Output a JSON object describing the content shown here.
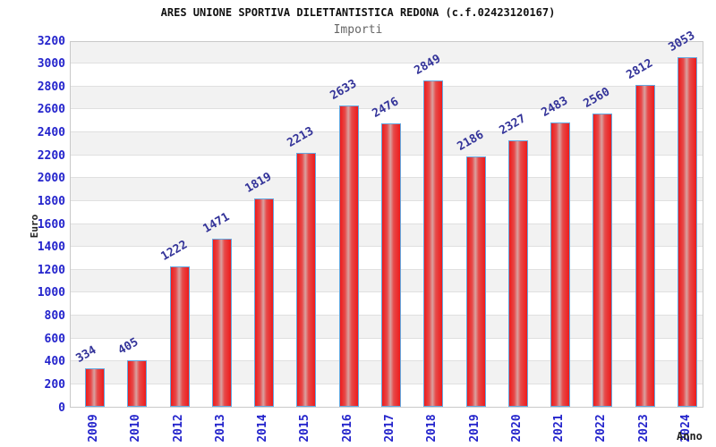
{
  "chart_data": {
    "type": "bar",
    "title": "ARES UNIONE SPORTIVA DILETTANTISTICA REDONA (c.f.02423120167)",
    "subtitle": "Importi",
    "xlabel": "Anno",
    "ylabel": "Euro",
    "categories": [
      "2009",
      "2010",
      "2012",
      "2013",
      "2014",
      "2015",
      "2016",
      "2017",
      "2018",
      "2019",
      "2020",
      "2021",
      "2022",
      "2023",
      "2024"
    ],
    "values": [
      334,
      405,
      1222,
      1471,
      1819,
      2213,
      2633,
      2476,
      2849,
      2186,
      2327,
      2483,
      2560,
      2812,
      3053
    ],
    "ylim": [
      0,
      3200
    ],
    "ytick_step": 200,
    "yticks": [
      0,
      200,
      400,
      600,
      800,
      1000,
      1200,
      1400,
      1600,
      1800,
      2000,
      2200,
      2400,
      2600,
      2800,
      3000,
      3200
    ],
    "grid": "horizontal alternating bands every 200 with light gridlines",
    "legend": "none",
    "value_labels": "above bars, rotated -30deg",
    "colors": {
      "bar_edge_red": "#ee1b1b",
      "bar_center_highlight": "#d9a2a0",
      "bar_border_blue": "#64a8e0",
      "axis_tick_blue": "#2424cc",
      "value_label_navy": "#333399",
      "band_gray": "#f2f2f2",
      "gridline_gray": "#e0e0e0",
      "plot_border_gray": "#c9c9c9",
      "title_black": "#111111",
      "subtitle_gray": "#666666"
    }
  }
}
